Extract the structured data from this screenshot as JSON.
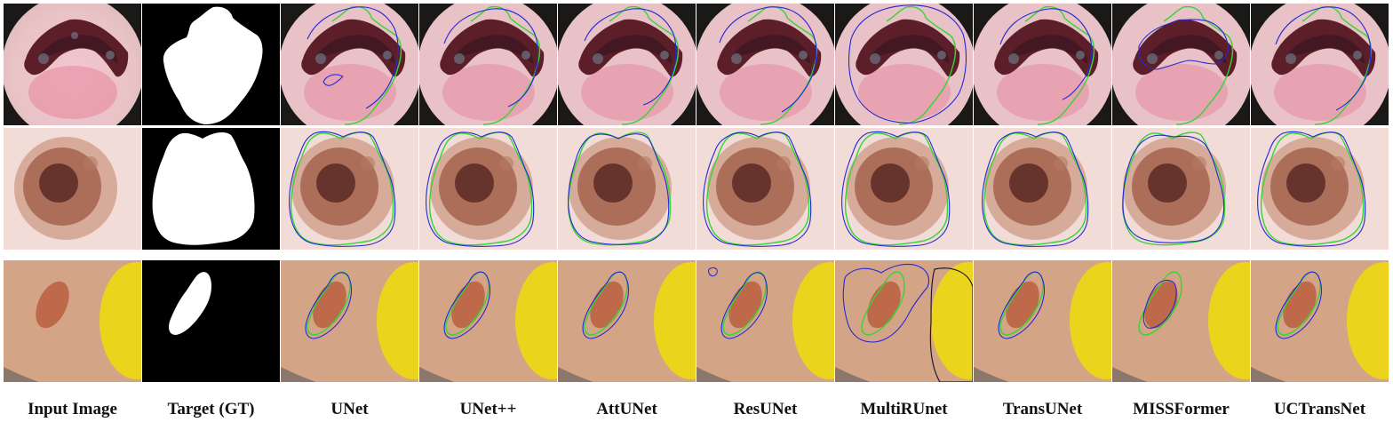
{
  "columns": [
    {
      "id": "input",
      "label": "Input Image"
    },
    {
      "id": "gt",
      "label": "Target (GT)"
    },
    {
      "id": "unet",
      "label": "UNet"
    },
    {
      "id": "unetpp",
      "label": "UNet++"
    },
    {
      "id": "attunet",
      "label": "AttUNet"
    },
    {
      "id": "resunet",
      "label": "ResUNet"
    },
    {
      "id": "multiresunet",
      "label": "MultiRUnet"
    },
    {
      "id": "transunet",
      "label": "TransUNet"
    },
    {
      "id": "missformer",
      "label": "MISSFormer"
    },
    {
      "id": "uctransnet",
      "label": "UCTransNet"
    }
  ],
  "rows": [
    {
      "id": "sample-1",
      "scene": "dark-lesion-pink-skin"
    },
    {
      "id": "sample-2",
      "scene": "brown-nevus-light-skin"
    },
    {
      "id": "sample-3",
      "scene": "small-lesion-yellow-marker"
    }
  ],
  "colors": {
    "gt_contour": "#33d633",
    "prediction_contour": "#2626d9",
    "mask_foreground": "#ffffff",
    "mask_background": "#000000"
  }
}
